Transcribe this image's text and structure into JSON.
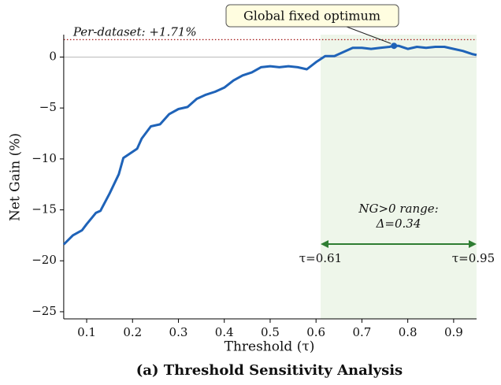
{
  "chart_data": {
    "type": "line",
    "title": "(a) Threshold Sensitivity Analysis",
    "x_label": "Threshold (τ)",
    "y_label": "Net Gain (%)",
    "x": [
      0.05,
      0.07,
      0.09,
      0.1,
      0.12,
      0.13,
      0.15,
      0.17,
      0.18,
      0.19,
      0.21,
      0.22,
      0.24,
      0.26,
      0.28,
      0.3,
      0.32,
      0.34,
      0.36,
      0.38,
      0.4,
      0.42,
      0.44,
      0.46,
      0.48,
      0.5,
      0.52,
      0.54,
      0.56,
      0.58,
      0.6,
      0.62,
      0.64,
      0.66,
      0.68,
      0.7,
      0.72,
      0.74,
      0.76,
      0.77,
      0.78,
      0.8,
      0.82,
      0.84,
      0.86,
      0.88,
      0.9,
      0.92,
      0.94,
      0.95
    ],
    "values": [
      -18.4,
      -17.5,
      -17.0,
      -16.4,
      -15.3,
      -15.1,
      -13.4,
      -11.5,
      -9.9,
      -9.6,
      -9.0,
      -8.0,
      -6.8,
      -6.6,
      -5.6,
      -5.1,
      -4.9,
      -4.1,
      -3.7,
      -3.4,
      -3.0,
      -2.3,
      -1.8,
      -1.5,
      -1.0,
      -0.9,
      -1.0,
      -0.9,
      -1.0,
      -1.2,
      -0.5,
      0.1,
      0.1,
      0.5,
      0.9,
      0.9,
      0.8,
      0.9,
      1.0,
      1.1,
      1.1,
      0.8,
      1.0,
      0.9,
      1.0,
      1.0,
      0.8,
      0.6,
      0.3,
      0.2
    ],
    "color": "#1f63b8",
    "xlim": [
      0.05,
      0.95
    ],
    "ylim": [
      -25.7,
      2.2
    ],
    "xticks": [
      0.1,
      0.2,
      0.3,
      0.4,
      0.5,
      0.6,
      0.7,
      0.8,
      0.9
    ],
    "yticks": [
      0,
      {
        "value": -5,
        "label": "−5"
      },
      {
        "value": -10,
        "label": "−10"
      },
      {
        "value": -15,
        "label": "−15"
      },
      {
        "value": -20,
        "label": "−20"
      },
      {
        "value": -25,
        "label": "−25"
      }
    ],
    "reference_line": {
      "value": 1.71,
      "label": "Per-dataset: +1.71%",
      "color": "#a01010"
    },
    "optimum": {
      "x": 0.77,
      "y": 1.1,
      "label": "Global fixed optimum"
    },
    "region": {
      "start": 0.61,
      "end": 0.95,
      "label": "NG>0 range:",
      "width_label": "Δ=0.34",
      "start_label": "τ=0.61",
      "end_label": "τ=0.95",
      "color": "#2e7d32"
    }
  }
}
